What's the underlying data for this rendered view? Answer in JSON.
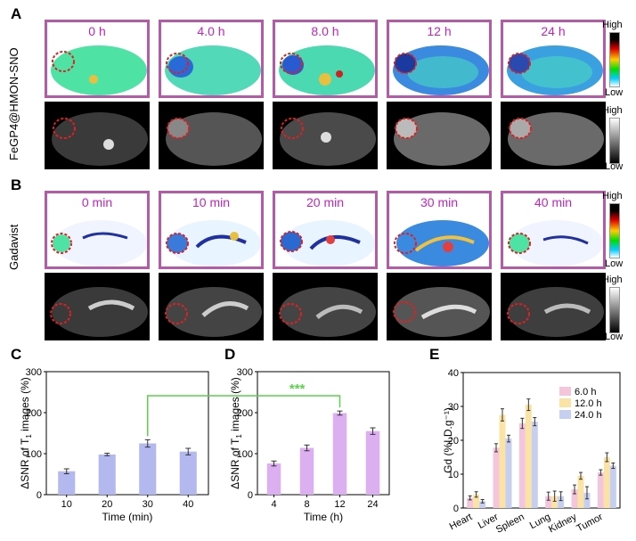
{
  "panels": {
    "A": "A",
    "B": "B",
    "C": "C",
    "D": "D",
    "E": "E"
  },
  "rows": {
    "a_label": "FeGP4@HMON-SNO",
    "b_label": "Gadavist"
  },
  "a_times": [
    "0 h",
    "4.0 h",
    "8.0 h",
    "12 h",
    "24 h"
  ],
  "b_times": [
    "0 min",
    "10 min",
    "20 min",
    "30 min",
    "40 min"
  ],
  "colorbar": {
    "high": "High",
    "low": "Low"
  },
  "significance": "***",
  "chart_data": [
    {
      "type": "bar",
      "panel": "C",
      "categories": [
        "10",
        "20",
        "30",
        "40"
      ],
      "values": [
        57,
        98,
        125,
        105
      ],
      "errors": [
        6,
        3,
        9,
        8
      ],
      "xlabel": "Time (min)",
      "ylabel": "ΔSNR of T1 images (%)",
      "ylim": [
        0,
        300
      ],
      "yticks": [
        "0",
        "100",
        "200",
        "300"
      ],
      "color": "#b3b8ef"
    },
    {
      "type": "bar",
      "panel": "D",
      "categories": [
        "4",
        "8",
        "12",
        "24"
      ],
      "values": [
        76,
        114,
        199,
        155
      ],
      "errors": [
        6,
        7,
        5,
        8
      ],
      "xlabel": "Time (h)",
      "ylabel": "ΔSNR of T1 images (%)",
      "ylim": [
        0,
        300
      ],
      "yticks": [
        "0",
        "100",
        "200",
        "300"
      ],
      "color": "#dcb0f0"
    },
    {
      "type": "bar",
      "panel": "E",
      "categories": [
        "Heart",
        "Liver",
        "Spleen",
        "Lung",
        "Kidney",
        "Tumor"
      ],
      "series": [
        {
          "name": "6.0 h",
          "values": [
            3,
            17.8,
            25,
            3.5,
            5.5,
            10.5
          ],
          "errors": [
            0.6,
            1.2,
            1.5,
            1.2,
            1.3,
            0.8
          ],
          "color": "#f3c6dc"
        },
        {
          "name": "12.0 h",
          "values": [
            4,
            27.5,
            30.5,
            3.5,
            9.5,
            15
          ],
          "errors": [
            0.8,
            1.8,
            1.7,
            1.5,
            1.0,
            1.3
          ],
          "color": "#fbe3a6"
        },
        {
          "name": "24.0 h",
          "values": [
            2,
            20.5,
            25.5,
            3.5,
            4.5,
            12.5
          ],
          "errors": [
            0.5,
            1.0,
            1.2,
            1.3,
            1.8,
            0.8
          ],
          "color": "#c7cff1"
        }
      ],
      "xlabel": "",
      "ylabel": "Gd (%I.D.g⁻¹)",
      "ylim": [
        0,
        40
      ],
      "yticks": [
        "0",
        "10",
        "20",
        "30",
        "40"
      ]
    }
  ]
}
